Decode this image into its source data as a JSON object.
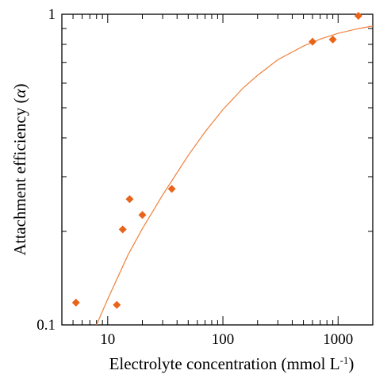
{
  "chart_data": {
    "type": "scatter",
    "xlabel": "Electrolyte concentration (mmol L",
    "xlabel_sup": "-1",
    "xlabel_close": ")",
    "ylabel": "Attachment  efficiency (",
    "ylabel_symbol": "α",
    "ylabel_close": ")",
    "x_scale": "log",
    "y_scale": "log",
    "xlim": [
      4,
      2000
    ],
    "ylim": [
      0.1,
      1
    ],
    "x_ticks": [
      10,
      100,
      1000
    ],
    "x_tick_labels": [
      "10",
      "100",
      "1000"
    ],
    "y_ticks": [
      0.1,
      1
    ],
    "y_tick_labels": [
      "0.1",
      "1"
    ],
    "grid": false,
    "legend": "none",
    "marker_color": "#E8641B",
    "fit_color": "#F0803C",
    "series": [
      {
        "marker": "diamond",
        "points": [
          {
            "x": 5.3,
            "y": 0.118
          },
          {
            "x": 12.0,
            "y": 0.116
          },
          {
            "x": 13.5,
            "y": 0.203
          },
          {
            "x": 15.5,
            "y": 0.254
          },
          {
            "x": 20.0,
            "y": 0.226
          },
          {
            "x": 36.0,
            "y": 0.274
          },
          {
            "x": 600,
            "y": 0.816
          },
          {
            "x": 900,
            "y": 0.829
          },
          {
            "x": 1500,
            "y": 0.988
          }
        ]
      },
      {
        "marker": "none",
        "points": [
          {
            "x": 8,
            "y": 0.1
          },
          {
            "x": 10,
            "y": 0.121
          },
          {
            "x": 15,
            "y": 0.168
          },
          {
            "x": 20,
            "y": 0.204
          },
          {
            "x": 30,
            "y": 0.262
          },
          {
            "x": 50,
            "y": 0.351
          },
          {
            "x": 70,
            "y": 0.418
          },
          {
            "x": 100,
            "y": 0.493
          },
          {
            "x": 150,
            "y": 0.579
          },
          {
            "x": 200,
            "y": 0.636
          },
          {
            "x": 300,
            "y": 0.714
          },
          {
            "x": 500,
            "y": 0.79
          },
          {
            "x": 700,
            "y": 0.832
          },
          {
            "x": 1000,
            "y": 0.868
          },
          {
            "x": 1500,
            "y": 0.899
          },
          {
            "x": 2000,
            "y": 0.916
          }
        ]
      }
    ]
  }
}
